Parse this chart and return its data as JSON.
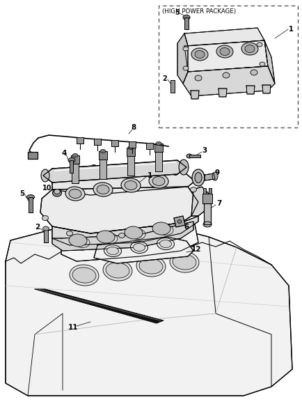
{
  "bg_color": "#ffffff",
  "box_label": "(HIGH POWER PACKAGE)",
  "line_color": "#000000",
  "gray1": "#f0f0f0",
  "gray2": "#e0e0e0",
  "gray3": "#cccccc",
  "gray4": "#aaaaaa",
  "gray5": "#888888",
  "gray6": "#666666"
}
